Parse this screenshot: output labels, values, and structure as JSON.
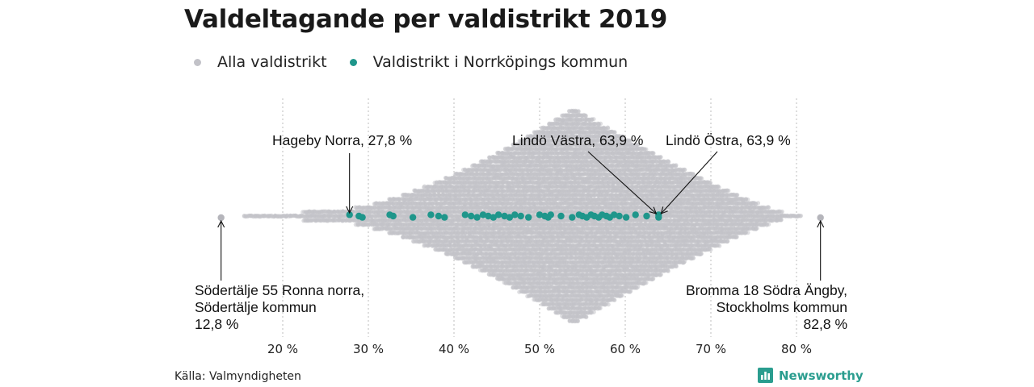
{
  "title": "Valdeltagande per valdistrikt 2019",
  "legend": [
    {
      "label": "Alla valdistrikt",
      "color": "#c2c2c8"
    },
    {
      "label": "Valdistrikt i Norrköpings kommun",
      "color": "#1f968b"
    }
  ],
  "source": "Källa: Valmyndigheten",
  "brand": {
    "name": "Newsworthy",
    "icon": "bar-chart-logo-icon",
    "color": "#2a9d8f"
  },
  "chart_data": {
    "type": "scatter",
    "subtype": "beeswarm",
    "title": "Valdeltagande per valdistrikt 2019",
    "x_unit": "%",
    "xlim": [
      11,
      86
    ],
    "x_ticks": [
      20,
      30,
      40,
      50,
      60,
      70,
      80
    ],
    "x_tick_labels": [
      "20 %",
      "30 %",
      "40 %",
      "50 %",
      "60 %",
      "70 %",
      "80 %"
    ],
    "grid": "vertical dotted",
    "legend_position": "top-left",
    "background_distribution": {
      "name": "Alla valdistrikt",
      "color": "#c2c2c8",
      "min": 12.8,
      "max": 82.8,
      "peak": 54.0,
      "approximate": true
    },
    "series": [
      {
        "name": "Alla valdistrikt",
        "color": "#b5b5bb",
        "highlighted_points": [
          12.8,
          82.8
        ]
      },
      {
        "name": "Valdistrikt i Norrköpings kommun",
        "color": "#1f968b",
        "x": [
          27.8,
          28.9,
          29.3,
          32.5,
          32.9,
          35.2,
          37.3,
          38.2,
          38.9,
          41.3,
          42.0,
          42.7,
          43.4,
          44.0,
          44.6,
          45.2,
          45.9,
          46.5,
          47.1,
          47.8,
          48.7,
          50.0,
          50.6,
          51.0,
          51.3,
          52.5,
          53.8,
          54.6,
          55.0,
          55.5,
          56.0,
          56.4,
          56.9,
          57.3,
          57.8,
          58.2,
          58.7,
          59.3,
          60.1,
          61.2,
          62.5,
          63.9,
          63.9
        ]
      }
    ],
    "annotations": [
      {
        "text": "Hageby Norra, 27,8 %",
        "x": 27.8
      },
      {
        "text": "Lindö Västra, 63,9 %",
        "x": 63.9
      },
      {
        "text": "Lindö Östra, 63,9 %",
        "x": 63.9
      },
      {
        "lines": [
          "Södertälje 55 Ronna norra,",
          "Södertälje kommun",
          "12,8 %"
        ],
        "x": 12.8,
        "align": "left"
      },
      {
        "lines": [
          "Bromma 18 Södra Ängby,",
          "Stockholms kommun",
          "82,8 %"
        ],
        "x": 82.8,
        "align": "right"
      }
    ]
  }
}
